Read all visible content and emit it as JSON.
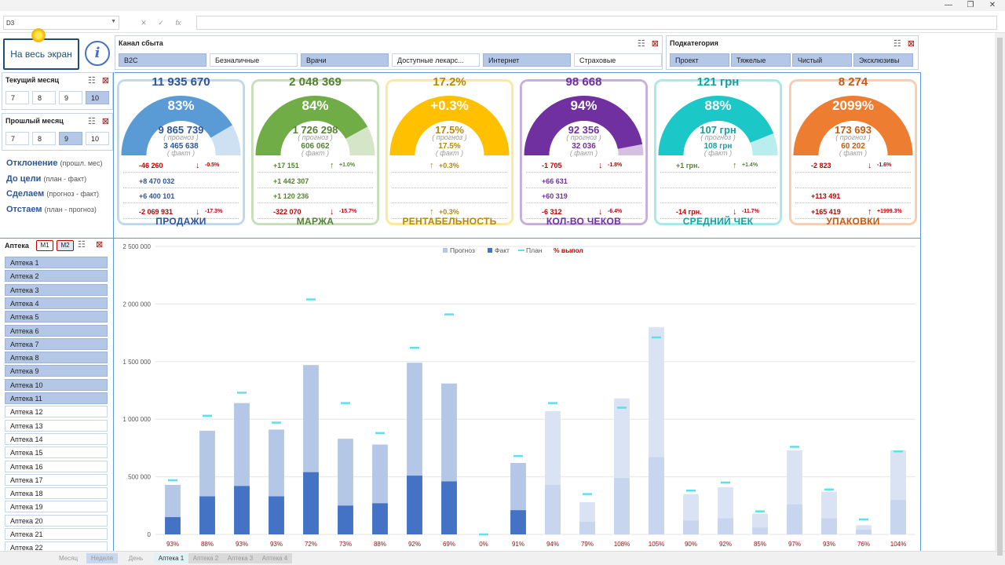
{
  "window": {
    "minimize": "—",
    "restore": "❐",
    "close": "✕"
  },
  "formula_bar": {
    "name_box": "D3",
    "cancel": "✕",
    "enter": "✓",
    "fx": "fx",
    "value": ""
  },
  "full_screen_label": "На весь экран",
  "info_label": "i",
  "channel_slicer": {
    "title": "Канал сбыта",
    "items": [
      {
        "label": "B2C",
        "selected": true
      },
      {
        "label": "Безналичные",
        "selected": false
      },
      {
        "label": "Врачи",
        "selected": true
      },
      {
        "label": "Доступные лекарс...",
        "selected": false
      },
      {
        "label": "Интернет",
        "selected": true
      },
      {
        "label": "Страховые",
        "selected": false
      }
    ]
  },
  "subcategory_slicer": {
    "title": "Подкатегория",
    "items": [
      {
        "label": "Проект",
        "selected": true
      },
      {
        "label": "Тяжелые",
        "selected": true
      },
      {
        "label": "Чистый",
        "selected": true
      },
      {
        "label": "Эксклюзивы",
        "selected": true
      }
    ]
  },
  "current_month": {
    "title": "Текущий месяц",
    "items": [
      {
        "label": "7",
        "selected": false
      },
      {
        "label": "8",
        "selected": false
      },
      {
        "label": "9",
        "selected": false
      },
      {
        "label": "10",
        "selected": true
      }
    ]
  },
  "previous_month": {
    "title": "Прошлый месяц",
    "items": [
      {
        "label": "7",
        "selected": false
      },
      {
        "label": "8",
        "selected": false
      },
      {
        "label": "9",
        "selected": true
      },
      {
        "label": "10",
        "selected": false
      }
    ]
  },
  "kpi_labels": [
    {
      "main": "Отклонение",
      "sub": "(прошл. мес)"
    },
    {
      "main": "До цели",
      "sub": "(план - факт)"
    },
    {
      "main": "Сделаем",
      "sub": "(прогноз - факт)"
    },
    {
      "main": "Отстаем",
      "sub": "(план - прогноз)"
    }
  ],
  "cards": [
    {
      "name": "ПРОДАЖИ",
      "color": "#5b9bd5",
      "text_color": "#2e5597",
      "head": "11 935 670",
      "pct": "83%",
      "pct_value": 0.83,
      "forecast": "9 865 739",
      "forecast_label": "( прогноз )",
      "fact": "3 465 638",
      "fact_label": "( факт )",
      "rows": [
        {
          "value": "-46 260",
          "cls": "red",
          "arrow": "↓",
          "arrow_cls": "red",
          "pct": "-0.5%",
          "pct_cls": "red"
        },
        {
          "value": "+8 470 032",
          "cls": "blu",
          "arrow": "",
          "arrow_cls": "",
          "pct": "",
          "pct_cls": ""
        },
        {
          "value": "+6 400 101",
          "cls": "blu",
          "arrow": "",
          "arrow_cls": "",
          "pct": "",
          "pct_cls": ""
        },
        {
          "value": "-2 069 931",
          "cls": "red",
          "arrow": "↓",
          "arrow_cls": "red",
          "pct": "-17.3%",
          "pct_cls": "red"
        }
      ]
    },
    {
      "name": "МАРЖА",
      "color": "#70ad47",
      "text_color": "#548235",
      "head": "2 048 369",
      "pct": "84%",
      "pct_value": 0.84,
      "forecast": "1 726 298",
      "forecast_label": "( прогноз )",
      "fact": "606 062",
      "fact_label": "( факт )",
      "rows": [
        {
          "value": "+17 151",
          "cls": "grn",
          "arrow": "↑",
          "arrow_cls": "grn",
          "pct": "+1.0%",
          "pct_cls": "grn"
        },
        {
          "value": "+1 442 307",
          "cls": "grn",
          "arrow": "",
          "arrow_cls": "",
          "pct": "",
          "pct_cls": ""
        },
        {
          "value": "+1 120 236",
          "cls": "grn",
          "arrow": "",
          "arrow_cls": "",
          "pct": "",
          "pct_cls": ""
        },
        {
          "value": "-322 070",
          "cls": "red",
          "arrow": "↓",
          "arrow_cls": "red",
          "pct": "-15.7%",
          "pct_cls": "red"
        }
      ]
    },
    {
      "name": "РЕНТАБЕЛЬНОСТЬ",
      "color": "#ffc000",
      "text_color": "#b58a00",
      "head": "17.2%",
      "pct": "+0.3%",
      "pct_value": 1.0,
      "forecast": "17.5%",
      "forecast_label": "( прогноз )",
      "fact": "17.5%",
      "fact_label": "( факт )",
      "rows": [
        {
          "value": "",
          "cls": "ylw",
          "arrow": "↑",
          "arrow_cls": "ylw",
          "pct": "+0.3%",
          "pct_cls": "ylw",
          "shift": true
        },
        {
          "value": "",
          "cls": "",
          "arrow": "",
          "arrow_cls": "",
          "pct": "",
          "pct_cls": ""
        },
        {
          "value": "",
          "cls": "",
          "arrow": "",
          "arrow_cls": "",
          "pct": "",
          "pct_cls": ""
        },
        {
          "value": "",
          "cls": "ylw",
          "arrow": "↑",
          "arrow_cls": "ylw",
          "pct": "+0.3%",
          "pct_cls": "ylw",
          "shift": true
        }
      ]
    },
    {
      "name": "КОЛ-ВО ЧЕКОВ",
      "color": "#7030a0",
      "text_color": "#7030a0",
      "head": "98 668",
      "pct": "94%",
      "pct_value": 0.94,
      "forecast": "92 356",
      "forecast_label": "( прогноз )",
      "fact": "32 036",
      "fact_label": "( факт )",
      "rows": [
        {
          "value": "-1 705",
          "cls": "red",
          "arrow": "↓",
          "arrow_cls": "red",
          "pct": "-1.8%",
          "pct_cls": "red"
        },
        {
          "value": "+66 631",
          "cls": "",
          "arrow": "",
          "arrow_cls": "",
          "pct": "",
          "pct_cls": ""
        },
        {
          "value": "+60 319",
          "cls": "",
          "arrow": "",
          "arrow_cls": "",
          "pct": "",
          "pct_cls": ""
        },
        {
          "value": "-6 312",
          "cls": "red",
          "arrow": "↓",
          "arrow_cls": "red",
          "pct": "-6.4%",
          "pct_cls": "red"
        }
      ]
    },
    {
      "name": "СРЕДНИЙ ЧЕК",
      "color": "#1cc7c7",
      "text_color": "#13a1a1",
      "head": "121 грн",
      "pct": "88%",
      "pct_value": 0.88,
      "forecast": "107 грн",
      "forecast_label": "( прогноз )",
      "fact": "108 грн",
      "fact_label": "( факт )",
      "rows": [
        {
          "value": "+1 грн.",
          "cls": "grn",
          "arrow": "↑",
          "arrow_cls": "grn",
          "pct": "+1.4%",
          "pct_cls": "grn"
        },
        {
          "value": "",
          "cls": "",
          "arrow": "",
          "arrow_cls": "",
          "pct": "",
          "pct_cls": ""
        },
        {
          "value": "",
          "cls": "",
          "arrow": "",
          "arrow_cls": "",
          "pct": "",
          "pct_cls": ""
        },
        {
          "value": "-14 грн.",
          "cls": "red",
          "arrow": "↓",
          "arrow_cls": "red",
          "pct": "-11.7%",
          "pct_cls": "red"
        }
      ]
    },
    {
      "name": "УПАКОВКИ",
      "color": "#ed7d31",
      "text_color": "#c55a11",
      "head": "8 274",
      "pct": "2099%",
      "pct_value": 1.0,
      "forecast": "173 693",
      "forecast_label": "( прогноз )",
      "fact": "60 202",
      "fact_label": "( факт )",
      "rows": [
        {
          "value": "-2 823",
          "cls": "red",
          "arrow": "↓",
          "arrow_cls": "red",
          "pct": "-1.6%",
          "pct_cls": "red"
        },
        {
          "value": "",
          "cls": "",
          "arrow": "",
          "arrow_cls": "",
          "pct": "",
          "pct_cls": ""
        },
        {
          "value": "+113 491",
          "cls": "red",
          "arrow": "",
          "arrow_cls": "",
          "pct": "",
          "pct_cls": ""
        },
        {
          "value": "+165 419",
          "cls": "red",
          "arrow": "↑",
          "arrow_cls": "red",
          "pct": "+1999.3%",
          "pct_cls": "red"
        }
      ]
    }
  ],
  "apteka_slicer": {
    "title": "Аптека",
    "m1": "M1",
    "m2": "M2",
    "items": [
      {
        "label": "Аптека 1",
        "selected": true
      },
      {
        "label": "Аптека 2",
        "selected": true
      },
      {
        "label": "Аптека 3",
        "selected": true
      },
      {
        "label": "Аптека 4",
        "selected": true
      },
      {
        "label": "Аптека 5",
        "selected": true
      },
      {
        "label": "Аптека 6",
        "selected": true
      },
      {
        "label": "Аптека 7",
        "selected": true
      },
      {
        "label": "Аптека 8",
        "selected": true
      },
      {
        "label": "Аптека 9",
        "selected": true
      },
      {
        "label": "Аптека 10",
        "selected": true
      },
      {
        "label": "Аптека 11",
        "selected": true
      },
      {
        "label": "Аптека 12",
        "selected": false
      },
      {
        "label": "Аптека 13",
        "selected": false
      },
      {
        "label": "Аптека 14",
        "selected": false
      },
      {
        "label": "Аптека 15",
        "selected": false
      },
      {
        "label": "Аптека 16",
        "selected": false
      },
      {
        "label": "Аптека 17",
        "selected": false
      },
      {
        "label": "Аптека 18",
        "selected": false
      },
      {
        "label": "Аптека 19",
        "selected": false
      },
      {
        "label": "Аптека 20",
        "selected": false
      },
      {
        "label": "Аптека 21",
        "selected": false
      },
      {
        "label": "Аптека 22",
        "selected": false
      }
    ]
  },
  "chart_data": {
    "type": "bar",
    "legend": {
      "position": "top",
      "entries": [
        {
          "name": "Прогноз",
          "color": "#b4c7e7"
        },
        {
          "name": "Факт",
          "color": "#4472c4"
        },
        {
          "name": "План",
          "color": "#5ee0e8"
        },
        {
          "name": "% выпол",
          "color": "#c00000"
        }
      ]
    },
    "ylim": [
      0,
      2500000
    ],
    "yticks": [
      "0",
      "500 000",
      "1 000 000",
      "1 500 000",
      "2 000 000",
      "2 500 000"
    ],
    "ytick_values": [
      0,
      500000,
      1000000,
      1500000,
      2000000,
      2500000
    ],
    "grid": true,
    "categories": [
      "Аптека 1",
      "Аптека 2",
      "Аптека 3",
      "Аптека 4",
      "Аптека 5",
      "Аптека 6",
      "Аптека 7",
      "Аптека 8",
      "Аптека 9",
      "Аптека 10",
      "Аптека 11",
      "Аптека 12",
      "Аптека 13",
      "Аптека 14",
      "Аптека 15",
      "Аптека 16",
      "Аптека 17",
      "Аптека 18",
      "Аптека 19",
      "Аптека 20",
      "Аптека 21",
      "Аптека 22"
    ],
    "forecast": [
      430000,
      900000,
      1140000,
      910000,
      1470000,
      830000,
      780000,
      1490000,
      1310000,
      0,
      620000,
      1070000,
      280000,
      1180000,
      1800000,
      350000,
      410000,
      180000,
      730000,
      370000,
      80000,
      730000
    ],
    "fact": [
      150000,
      330000,
      420000,
      330000,
      540000,
      250000,
      270000,
      510000,
      460000,
      0,
      210000,
      430000,
      110000,
      490000,
      670000,
      120000,
      140000,
      60000,
      260000,
      140000,
      40000,
      300000
    ],
    "plan": [
      470000,
      1030000,
      1230000,
      970000,
      2040000,
      1140000,
      880000,
      1620000,
      1910000,
      0,
      680000,
      1140000,
      350000,
      1100000,
      1710000,
      380000,
      450000,
      200000,
      760000,
      390000,
      130000,
      720000
    ],
    "selected": [
      true,
      true,
      true,
      true,
      true,
      true,
      true,
      true,
      true,
      true,
      true,
      false,
      false,
      false,
      false,
      false,
      false,
      false,
      false,
      false,
      false,
      false
    ],
    "pct_labels": [
      "93%",
      "88%",
      "93%",
      "93%",
      "72%",
      "73%",
      "88%",
      "92%",
      "69%",
      "0%",
      "91%",
      "94%",
      "79%",
      "108%",
      "105%",
      "90%",
      "92%",
      "85%",
      "97%",
      "93%",
      "76%",
      "104%"
    ]
  },
  "sheet_tabs": [
    "Месяц",
    "Неделя",
    "День",
    "Аптека 1",
    "Аптека 2",
    "Аптека 3",
    "Аптека 4"
  ]
}
